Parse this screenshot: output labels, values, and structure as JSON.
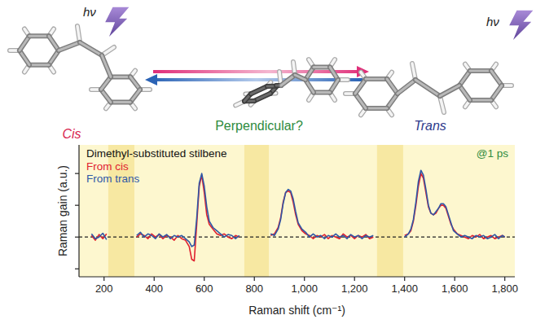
{
  "diagram": {
    "photon_labels": [
      "hν",
      "hν"
    ],
    "labels": [
      {
        "text": "Cis",
        "color": "#d81f4f"
      },
      {
        "text": "Perpendicular?",
        "color": "#2e8b3e"
      },
      {
        "text": "Trans",
        "color": "#2d3a8c"
      }
    ]
  },
  "chart_data": {
    "type": "line",
    "title": "Dimethyl-substituted stilbene",
    "annotation": "@1 ps",
    "x_label": "Raman shift (cm⁻¹)",
    "y_label": "Raman gain (a.u.)",
    "x": [
      150,
      165,
      180,
      195,
      210,
      270,
      330,
      345,
      360,
      375,
      390,
      405,
      420,
      435,
      450,
      465,
      480,
      495,
      510,
      525,
      540,
      550,
      560,
      570,
      580,
      590,
      600,
      610,
      620,
      635,
      650,
      665,
      680,
      695,
      710,
      725,
      740,
      800,
      865,
      880,
      895,
      905,
      915,
      925,
      935,
      945,
      955,
      965,
      975,
      990,
      1005,
      1020,
      1035,
      1050,
      1065,
      1080,
      1095,
      1110,
      1125,
      1140,
      1155,
      1170,
      1185,
      1200,
      1215,
      1230,
      1245,
      1260,
      1275,
      1340,
      1400,
      1415,
      1425,
      1435,
      1445,
      1455,
      1465,
      1475,
      1485,
      1495,
      1505,
      1515,
      1525,
      1535,
      1545,
      1555,
      1565,
      1575,
      1585,
      1595,
      1610,
      1625,
      1640,
      1655,
      1670,
      1685,
      1700,
      1715,
      1730,
      1745,
      1760,
      1775,
      1790,
      1800
    ],
    "series": [
      {
        "name": "From cis",
        "color": "#e0202f",
        "line_style": "solid",
        "values": [
          0.05,
          -0.1,
          0.08,
          -0.05,
          0.1,
          null,
          0.0,
          0.1,
          0.05,
          -0.05,
          0.1,
          0.0,
          0.08,
          -0.05,
          0.05,
          0.0,
          -0.1,
          0.05,
          -0.05,
          -0.1,
          -0.3,
          -0.7,
          -0.75,
          0.4,
          1.6,
          1.95,
          1.4,
          0.7,
          0.4,
          0.25,
          0.1,
          0.05,
          0.1,
          0.0,
          -0.05,
          0.05,
          0.0,
          null,
          0.05,
          0.1,
          0.3,
          0.6,
          1.1,
          1.4,
          1.45,
          1.4,
          1.1,
          0.7,
          0.4,
          0.2,
          0.1,
          0.05,
          -0.05,
          0.05,
          0.0,
          0.08,
          -0.05,
          0.05,
          0.0,
          -0.05,
          0.1,
          0.0,
          0.05,
          -0.05,
          0.05,
          0.0,
          0.08,
          -0.05,
          0.0,
          null,
          0.05,
          0.1,
          0.2,
          0.5,
          1.0,
          1.6,
          2.0,
          1.85,
          1.4,
          0.95,
          0.75,
          0.7,
          0.75,
          0.9,
          1.0,
          1.0,
          0.9,
          0.65,
          0.4,
          0.25,
          0.1,
          0.05,
          0.0,
          -0.05,
          0.05,
          0.0,
          0.08,
          -0.05,
          0.0,
          0.05,
          -0.05,
          0.0,
          0.05,
          0.0
        ]
      },
      {
        "name": "From trans",
        "color": "#2f58a6",
        "line_style": "solid",
        "values": [
          0.1,
          -0.05,
          0.0,
          0.12,
          -0.08,
          null,
          0.05,
          0.15,
          0.0,
          0.1,
          0.05,
          -0.05,
          0.1,
          0.0,
          0.08,
          -0.05,
          0.05,
          0.0,
          0.05,
          -0.05,
          -0.15,
          -0.3,
          -0.25,
          0.6,
          1.7,
          2.0,
          1.6,
          0.95,
          0.5,
          0.3,
          0.2,
          0.1,
          0.0,
          0.08,
          0.05,
          -0.05,
          0.05,
          null,
          0.1,
          0.05,
          0.25,
          0.55,
          1.05,
          1.4,
          1.5,
          1.45,
          1.2,
          0.8,
          0.45,
          0.25,
          0.15,
          0.0,
          0.1,
          0.0,
          0.05,
          -0.05,
          0.05,
          0.0,
          0.1,
          0.0,
          0.05,
          -0.05,
          0.08,
          0.0,
          0.05,
          -0.05,
          0.05,
          0.0,
          0.05,
          null,
          0.0,
          0.1,
          0.25,
          0.55,
          1.1,
          1.75,
          2.1,
          1.95,
          1.5,
          1.0,
          0.75,
          0.7,
          0.8,
          0.9,
          1.05,
          1.05,
          0.95,
          0.7,
          0.45,
          0.2,
          0.1,
          0.0,
          0.05,
          0.0,
          -0.05,
          0.05,
          0.0,
          0.05,
          -0.05,
          0.0,
          0.08,
          -0.05,
          0.05,
          0.0
        ]
      }
    ],
    "xlim": [
      100,
      1840
    ],
    "ylim": [
      -1.25,
      2.9
    ],
    "xticks": [
      200,
      400,
      600,
      800,
      {
        "value": 1000,
        "label": "1,000"
      },
      {
        "value": 1200,
        "label": "1,200"
      },
      {
        "value": 1400,
        "label": "1,400"
      },
      {
        "value": 1600,
        "label": "1,600"
      },
      {
        "value": 1800,
        "label": "1,800"
      }
    ],
    "yticks": [
      -1,
      0,
      1,
      2
    ],
    "tick_labels": "x",
    "legend": "upper left",
    "grid": false,
    "baseline": 0,
    "masked_ranges": [
      [
        217,
        321
      ],
      [
        760,
        858
      ],
      [
        1290,
        1394
      ]
    ]
  }
}
